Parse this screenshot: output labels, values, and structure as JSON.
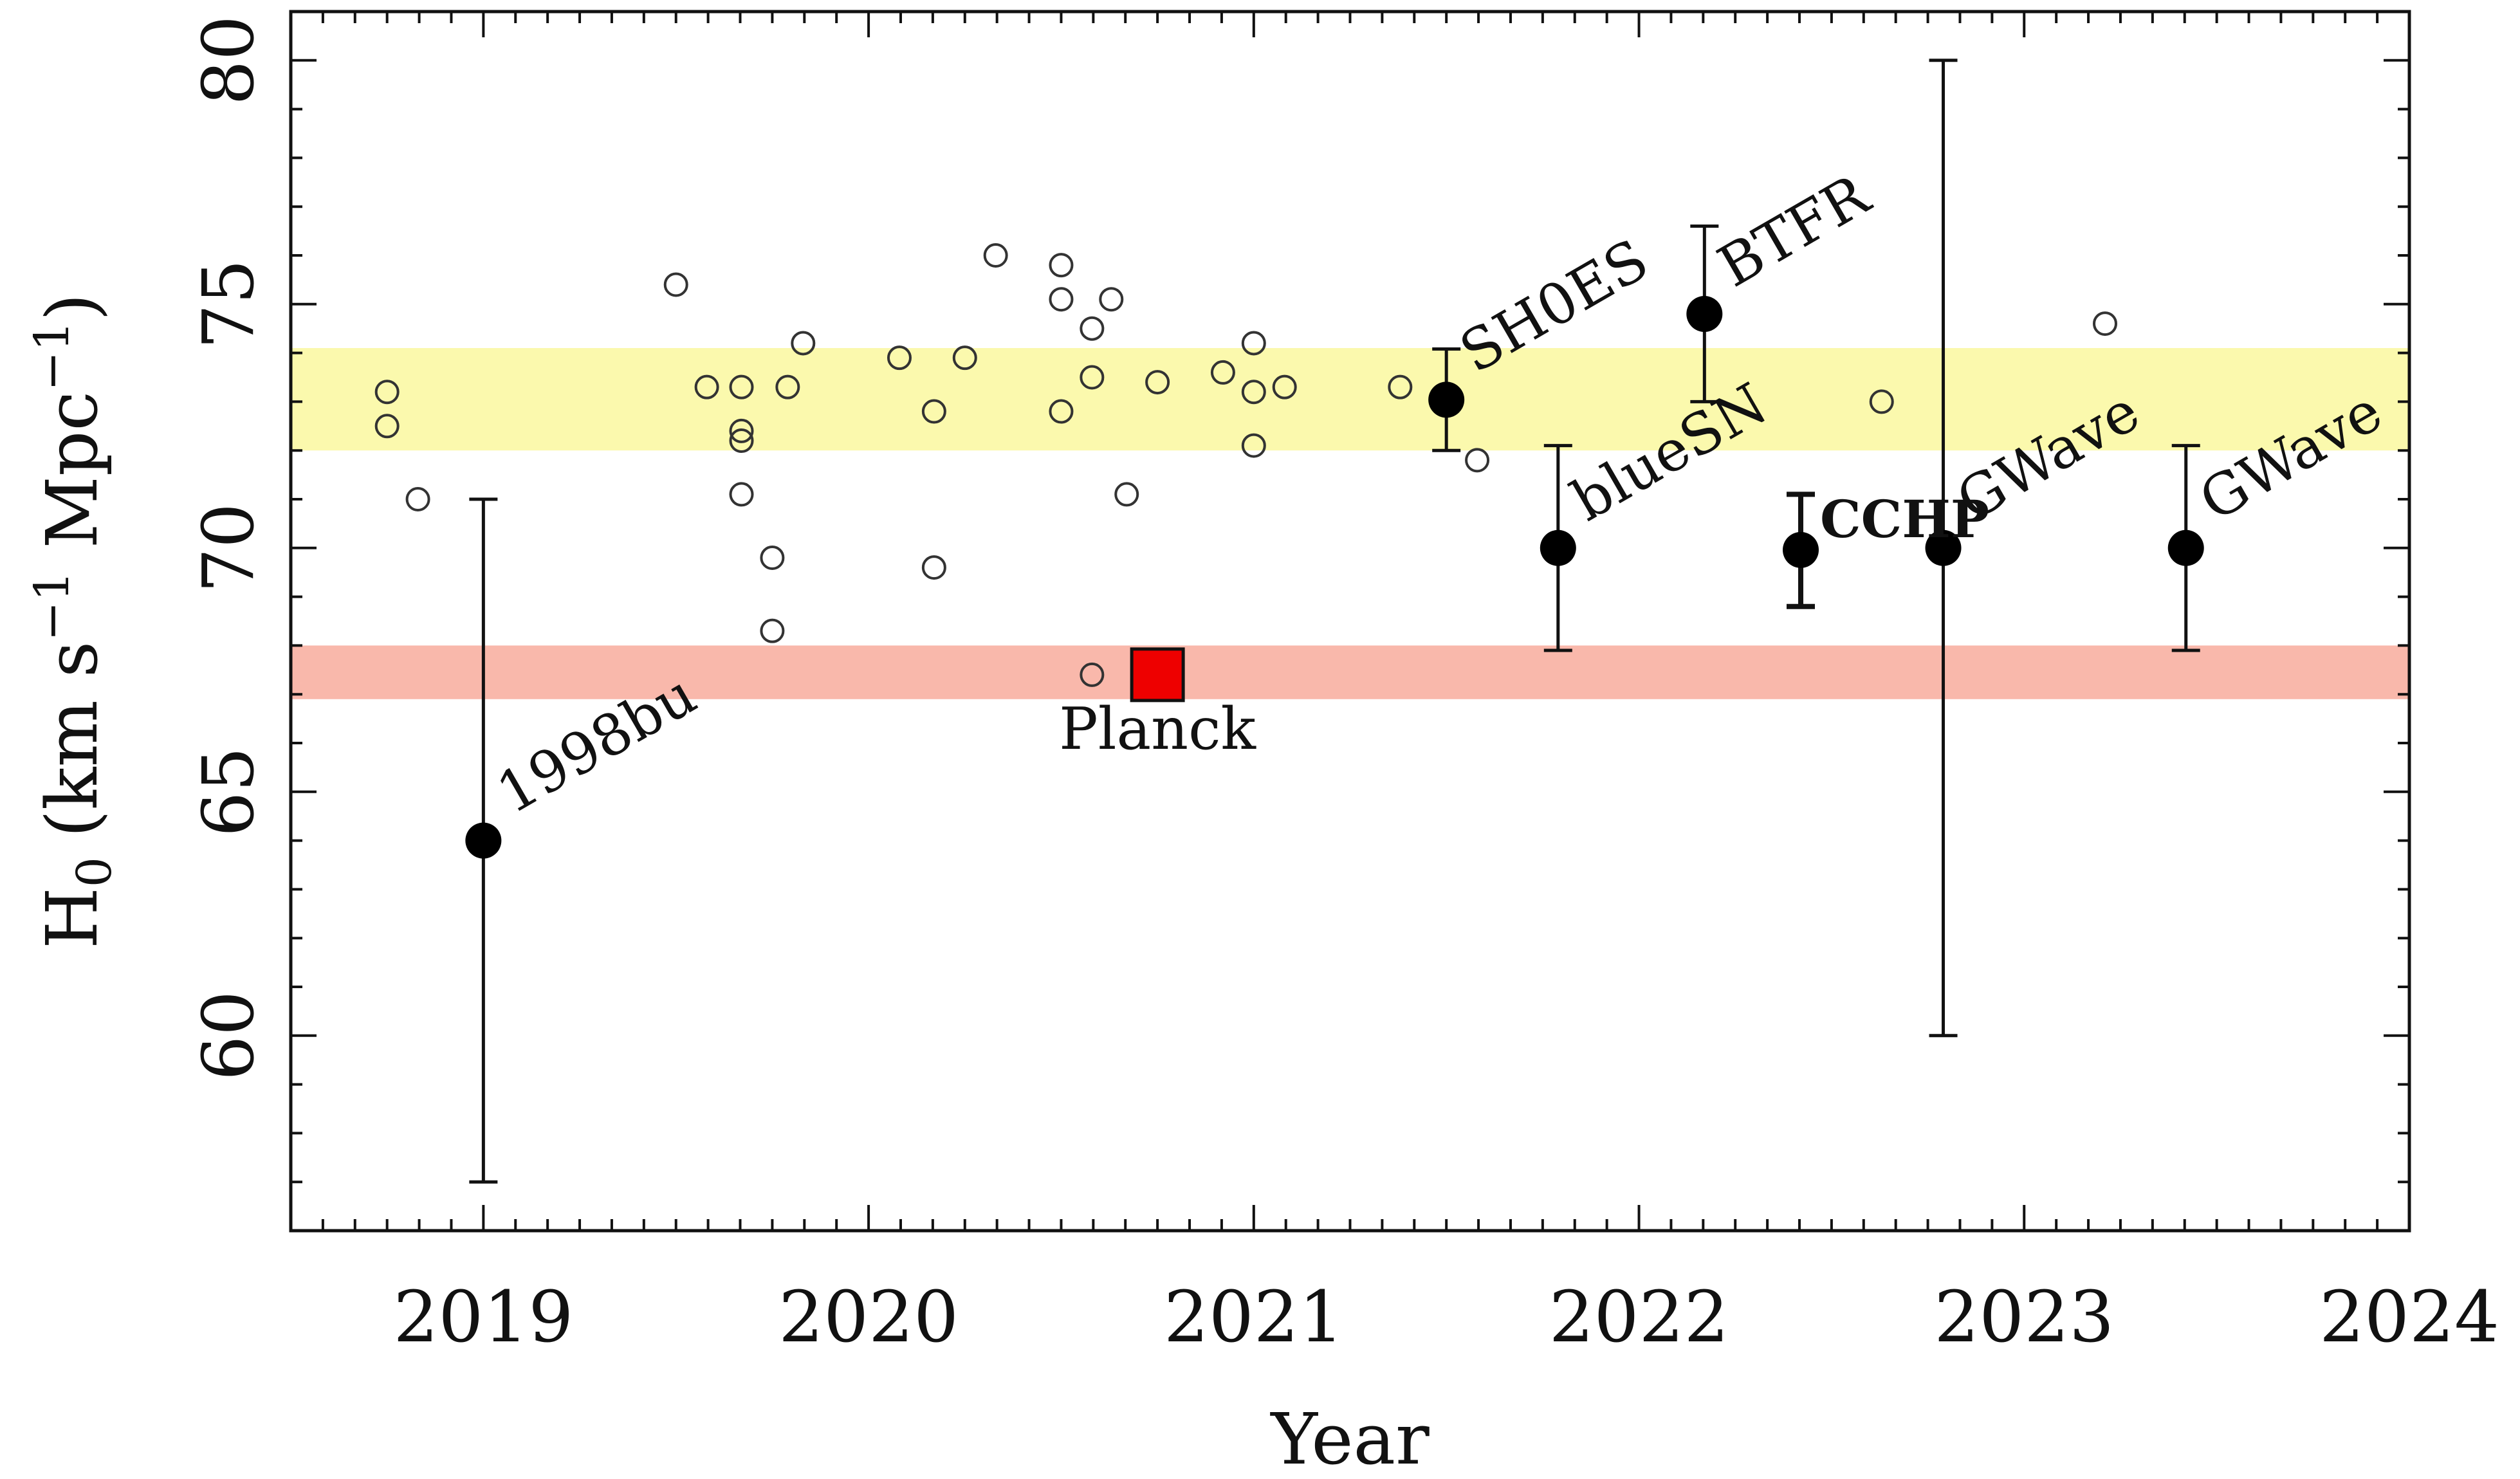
{
  "chart_data": {
    "type": "scatter",
    "xlabel": "Year",
    "ylabel": {
      "main": "H",
      "sub": "0",
      "units_pre": "(km s",
      "units_sup1": "−1",
      "units_mid": " Mpc",
      "units_sup2": "−1",
      "units_post": ")"
    },
    "xlim": [
      2018.5,
      2024
    ],
    "ylim": [
      56,
      81
    ],
    "xticks": [
      {
        "value": 2019,
        "label": "2019"
      },
      {
        "value": 2020,
        "label": "2020"
      },
      {
        "value": 2021,
        "label": "2021"
      },
      {
        "value": 2022,
        "label": "2022"
      },
      {
        "value": 2023,
        "label": "2023"
      },
      {
        "value": 2024,
        "label": "2024"
      }
    ],
    "yticks": [
      {
        "value": 60,
        "label": "60"
      },
      {
        "value": 65,
        "label": "65"
      },
      {
        "value": 70,
        "label": "70"
      },
      {
        "value": 75,
        "label": "75"
      },
      {
        "value": 80,
        "label": "80"
      }
    ],
    "bands": [
      {
        "ymin": 72.0,
        "ymax": 74.1,
        "color": "#fbf9ad"
      },
      {
        "ymin": 66.9,
        "ymax": 68.0,
        "color": "#f9b8ab"
      }
    ],
    "open_points": [
      {
        "x": 2018.75,
        "y": 73.2
      },
      {
        "x": 2018.75,
        "y": 72.5
      },
      {
        "x": 2018.83,
        "y": 71.0
      },
      {
        "x": 2019.5,
        "y": 75.4
      },
      {
        "x": 2019.58,
        "y": 73.3
      },
      {
        "x": 2019.67,
        "y": 73.3
      },
      {
        "x": 2019.67,
        "y": 72.4
      },
      {
        "x": 2019.67,
        "y": 72.2
      },
      {
        "x": 2019.67,
        "y": 71.1
      },
      {
        "x": 2019.75,
        "y": 69.8
      },
      {
        "x": 2019.75,
        "y": 68.3
      },
      {
        "x": 2019.79,
        "y": 73.3
      },
      {
        "x": 2019.83,
        "y": 74.2
      },
      {
        "x": 2020.08,
        "y": 73.9
      },
      {
        "x": 2020.17,
        "y": 72.8
      },
      {
        "x": 2020.17,
        "y": 69.6
      },
      {
        "x": 2020.25,
        "y": 73.9
      },
      {
        "x": 2020.33,
        "y": 76.0
      },
      {
        "x": 2020.5,
        "y": 75.8
      },
      {
        "x": 2020.5,
        "y": 75.1
      },
      {
        "x": 2020.5,
        "y": 72.8
      },
      {
        "x": 2020.58,
        "y": 74.5
      },
      {
        "x": 2020.58,
        "y": 73.5
      },
      {
        "x": 2020.58,
        "y": 67.4
      },
      {
        "x": 2020.63,
        "y": 75.1
      },
      {
        "x": 2020.67,
        "y": 71.1
      },
      {
        "x": 2020.75,
        "y": 73.4
      },
      {
        "x": 2020.92,
        "y": 73.6
      },
      {
        "x": 2021.0,
        "y": 74.2
      },
      {
        "x": 2021.0,
        "y": 73.2
      },
      {
        "x": 2021.0,
        "y": 72.1
      },
      {
        "x": 2021.08,
        "y": 73.3
      },
      {
        "x": 2021.38,
        "y": 73.3
      },
      {
        "x": 2021.58,
        "y": 71.8
      },
      {
        "x": 2022.63,
        "y": 73.0
      },
      {
        "x": 2023.21,
        "y": 74.6
      }
    ],
    "filled_points": [
      {
        "label": "1998bu",
        "x": 2019.0,
        "y": 64.0,
        "err_low": 57.0,
        "err_high": 71.0,
        "label_rotation": -30,
        "bold": false
      },
      {
        "label": "SH0ES",
        "x": 2021.5,
        "y": 73.04,
        "err_low": 72.0,
        "err_high": 74.08,
        "label_rotation": -30,
        "bold": false
      },
      {
        "label": "blueSN",
        "x": 2021.79,
        "y": 70.0,
        "err_low": 67.9,
        "err_high": 72.1,
        "label_rotation": -30,
        "bold": false
      },
      {
        "label": "BTFR",
        "x": 2022.17,
        "y": 74.8,
        "err_low": 73.0,
        "err_high": 76.6,
        "label_rotation": -30,
        "bold": false
      },
      {
        "label": "CCHP",
        "x": 2022.42,
        "y": 69.96,
        "err_low": 68.8,
        "err_high": 71.1,
        "label_rotation": 0,
        "bold": true
      },
      {
        "label": "GWave",
        "x": 2022.79,
        "y": 70.0,
        "err_low": 60.0,
        "err_high": 80.0,
        "label_rotation": -30,
        "bold": false
      },
      {
        "label": "GWave",
        "x": 2023.42,
        "y": 70.0,
        "err_low": 67.9,
        "err_high": 72.1,
        "label_rotation": -30,
        "bold": false
      }
    ],
    "special_point": {
      "label": "Planck",
      "x": 2020.75,
      "y": 67.4,
      "color": "#ee0000",
      "marker": "square"
    }
  }
}
